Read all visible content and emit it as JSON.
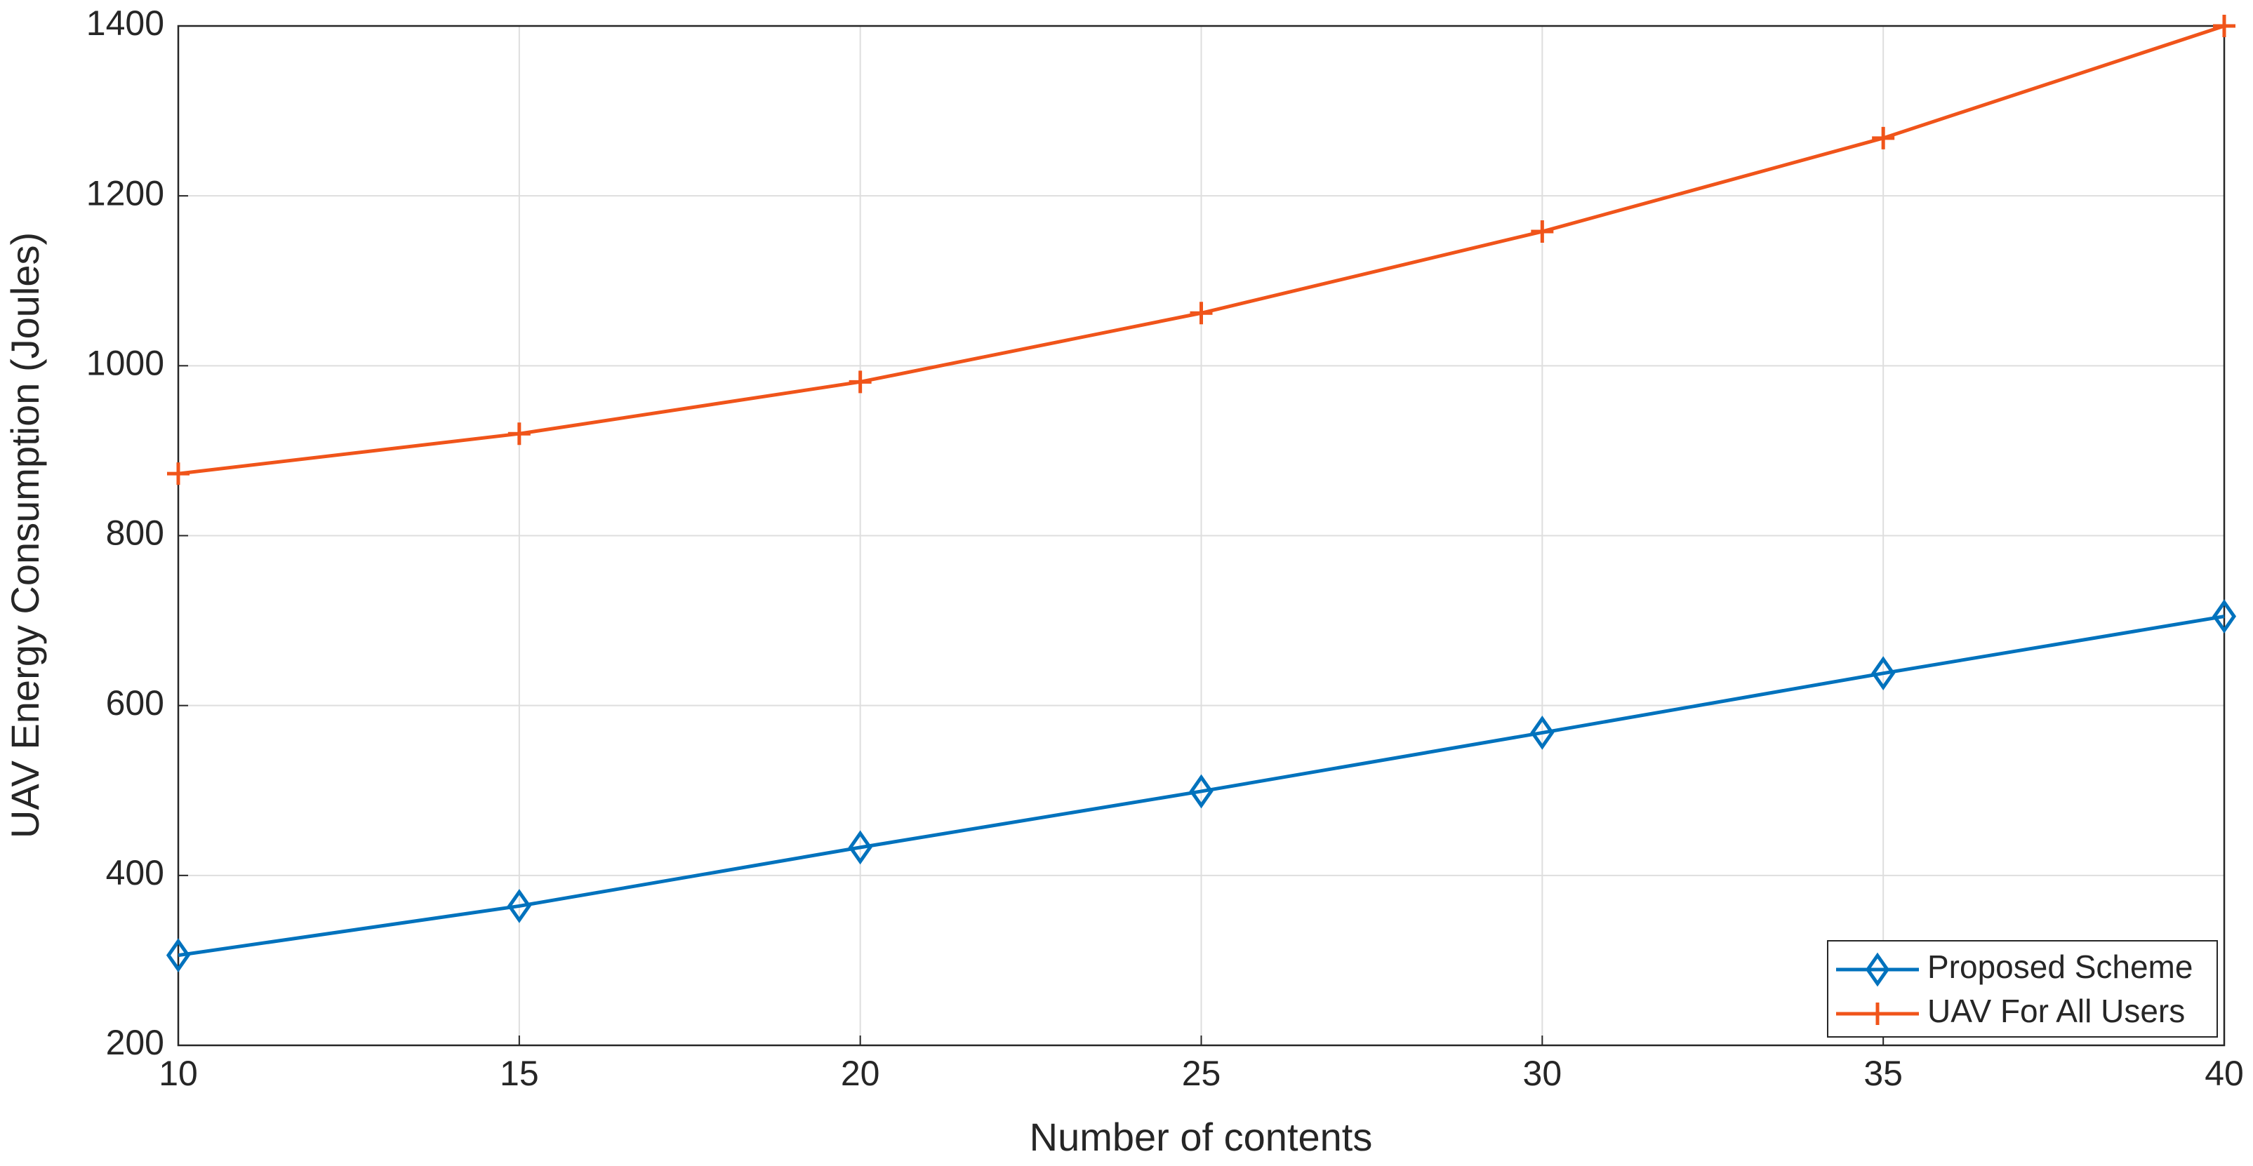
{
  "chart_data": {
    "type": "line",
    "x_label": "Number of contents",
    "y_label": "UAV Energy Consumption (Joules)",
    "x": [
      10,
      15,
      20,
      25,
      30,
      35,
      40
    ],
    "series": [
      {
        "name": "Proposed Scheme",
        "color": "#0072bd",
        "marker": "diamond",
        "values": [
          306,
          364,
          433,
          499,
          568,
          638,
          705
        ]
      },
      {
        "name": "UAV For All Users",
        "color": "#f0541a",
        "marker": "plus",
        "values": [
          873,
          920,
          981,
          1062,
          1158,
          1268,
          1400
        ]
      }
    ],
    "xlim": [
      10,
      40
    ],
    "xticks": [
      10,
      15,
      20,
      25,
      30,
      35,
      40
    ],
    "ylim": [
      200,
      1400
    ],
    "yticks": [
      200,
      400,
      600,
      800,
      1000,
      1200,
      1400
    ],
    "grid": true,
    "legend": "southeast"
  }
}
